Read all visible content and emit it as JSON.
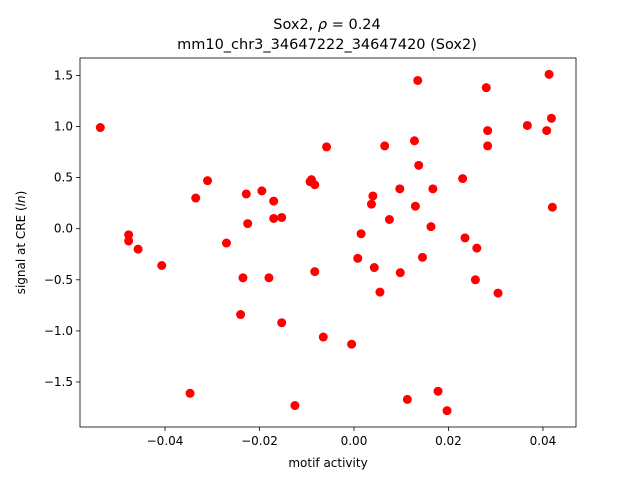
{
  "chart_data": {
    "type": "scatter",
    "title_line1_prefix": "Sox2, ",
    "title_line1_rho": "ρ",
    "title_line1_suffix": " = 0.24",
    "title_line2": "mm10_chr3_34647222_34647420 (Sox2)",
    "xlabel": "motif activity",
    "ylabel_prefix": "signal at CRE (",
    "ylabel_italic": "ln",
    "ylabel_suffix": ")",
    "xlim": [
      -0.058,
      0.047
    ],
    "ylim": [
      -1.94,
      1.67
    ],
    "xticks": [
      -0.04,
      -0.02,
      0.0,
      0.02,
      0.04
    ],
    "xtick_labels": [
      "−0.04",
      "−0.02",
      "0.00",
      "0.02",
      "0.04"
    ],
    "yticks": [
      -1.5,
      -1.0,
      -0.5,
      0.0,
      0.5,
      1.0,
      1.5
    ],
    "ytick_labels": [
      "−1.5",
      "−1.0",
      "−0.5",
      "0.0",
      "0.5",
      "1.0",
      "1.5"
    ],
    "grid": false,
    "marker_color": "#ff0000",
    "points": [
      [
        -0.0537,
        0.99
      ],
      [
        -0.0477,
        -0.06
      ],
      [
        -0.0477,
        -0.12
      ],
      [
        -0.0457,
        -0.2
      ],
      [
        -0.0407,
        -0.36
      ],
      [
        -0.0347,
        -1.61
      ],
      [
        -0.0335,
        0.3
      ],
      [
        -0.031,
        0.47
      ],
      [
        -0.027,
        -0.14
      ],
      [
        -0.024,
        -0.84
      ],
      [
        -0.0235,
        -0.48
      ],
      [
        -0.0228,
        0.34
      ],
      [
        -0.0225,
        0.05
      ],
      [
        -0.0195,
        0.37
      ],
      [
        -0.018,
        -0.48
      ],
      [
        -0.017,
        0.27
      ],
      [
        -0.017,
        0.1
      ],
      [
        -0.0153,
        0.11
      ],
      [
        -0.0153,
        -0.92
      ],
      [
        -0.0125,
        -1.73
      ],
      [
        -0.0093,
        0.46
      ],
      [
        -0.009,
        0.48
      ],
      [
        -0.0083,
        0.43
      ],
      [
        -0.0083,
        -0.42
      ],
      [
        -0.0065,
        -1.06
      ],
      [
        -0.0058,
        0.8
      ],
      [
        -0.0005,
        -1.13
      ],
      [
        0.0008,
        -0.29
      ],
      [
        0.0015,
        -0.05
      ],
      [
        0.0037,
        0.24
      ],
      [
        0.004,
        0.32
      ],
      [
        0.0043,
        -0.38
      ],
      [
        0.0055,
        -0.62
      ],
      [
        0.0065,
        0.81
      ],
      [
        0.0075,
        0.09
      ],
      [
        0.0097,
        0.39
      ],
      [
        0.0098,
        -0.43
      ],
      [
        0.0113,
        -1.67
      ],
      [
        0.0128,
        0.86
      ],
      [
        0.013,
        0.22
      ],
      [
        0.0135,
        1.45
      ],
      [
        0.0137,
        0.62
      ],
      [
        0.0145,
        -0.28
      ],
      [
        0.0163,
        0.02
      ],
      [
        0.0167,
        0.39
      ],
      [
        0.0178,
        -1.59
      ],
      [
        0.0197,
        -1.78
      ],
      [
        0.023,
        0.49
      ],
      [
        0.0235,
        -0.09
      ],
      [
        0.0257,
        -0.5
      ],
      [
        0.026,
        -0.19
      ],
      [
        0.028,
        1.38
      ],
      [
        0.0283,
        0.96
      ],
      [
        0.0283,
        0.81
      ],
      [
        0.0305,
        -0.63
      ],
      [
        0.0367,
        1.01
      ],
      [
        0.0408,
        0.96
      ],
      [
        0.0413,
        1.51
      ],
      [
        0.0418,
        1.08
      ],
      [
        0.042,
        0.21
      ]
    ]
  }
}
